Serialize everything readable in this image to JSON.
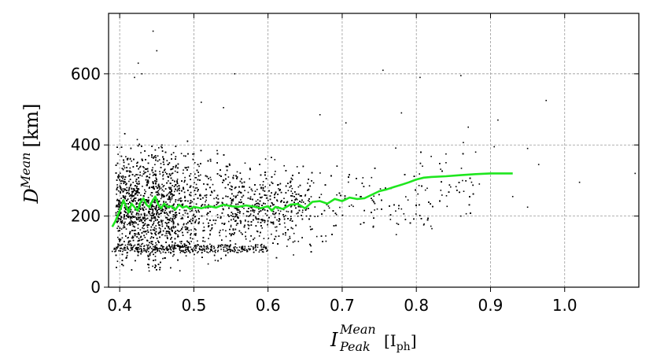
{
  "chart_data": {
    "type": "scatter",
    "xlabel": {
      "symbol": "I",
      "superscript": "Mean",
      "subscript": "Peak",
      "unit_open": "[I",
      "unit_sub": "ph",
      "unit_close": "]"
    },
    "ylabel": {
      "symbol": "D",
      "superscript": "Mean",
      "unit": "[km]"
    },
    "xlim": [
      0.385,
      1.1
    ],
    "ylim": [
      0,
      770
    ],
    "x_ticks": [
      {
        "value": 0.4,
        "label": "0.4"
      },
      {
        "value": 0.5,
        "label": "0.5"
      },
      {
        "value": 0.6,
        "label": "0.6"
      },
      {
        "value": 0.7,
        "label": "0.7"
      },
      {
        "value": 0.8,
        "label": "0.8"
      },
      {
        "value": 0.9,
        "label": "0.9"
      },
      {
        "value": 1.0,
        "label": "1.0"
      }
    ],
    "y_ticks": [
      {
        "value": 0,
        "label": "0"
      },
      {
        "value": 200,
        "label": "200"
      },
      {
        "value": 400,
        "label": "400"
      },
      {
        "value": 600,
        "label": "600"
      }
    ],
    "grid": true,
    "scatter": {
      "color": "#000000",
      "description": "dense cloud of individual points, most concentrated at x 0.40-0.55, y 100-350, thinning toward higher x",
      "outliers": [
        [
          0.425,
          630
        ],
        [
          0.43,
          600
        ],
        [
          0.445,
          720
        ],
        [
          0.45,
          665
        ],
        [
          0.42,
          590
        ],
        [
          0.555,
          600
        ],
        [
          0.755,
          610
        ],
        [
          0.805,
          590
        ],
        [
          0.86,
          595
        ],
        [
          0.975,
          525
        ],
        [
          0.51,
          520
        ],
        [
          0.54,
          505
        ],
        [
          0.67,
          485
        ],
        [
          0.78,
          490
        ],
        [
          0.87,
          450
        ],
        [
          0.91,
          470
        ],
        [
          0.705,
          462
        ],
        [
          0.965,
          345
        ],
        [
          1.02,
          295
        ],
        [
          1.095,
          320
        ],
        [
          0.88,
          380
        ],
        [
          0.95,
          390
        ],
        [
          0.93,
          255
        ],
        [
          0.86,
          200
        ],
        [
          0.95,
          225
        ],
        [
          0.81,
          175
        ],
        [
          0.78,
          220
        ],
        [
          0.885,
          290
        ],
        [
          0.84,
          350
        ],
        [
          0.905,
          395
        ]
      ]
    },
    "series": [
      {
        "name": "",
        "color": "#1ee61e",
        "x": [
          0.39,
          0.394,
          0.398,
          0.402,
          0.405,
          0.408,
          0.412,
          0.416,
          0.42,
          0.424,
          0.428,
          0.432,
          0.436,
          0.44,
          0.444,
          0.448,
          0.452,
          0.456,
          0.46,
          0.465,
          0.47,
          0.475,
          0.48,
          0.485,
          0.49,
          0.495,
          0.5,
          0.51,
          0.52,
          0.53,
          0.54,
          0.55,
          0.56,
          0.57,
          0.58,
          0.59,
          0.6,
          0.605,
          0.61,
          0.62,
          0.63,
          0.64,
          0.65,
          0.66,
          0.67,
          0.68,
          0.69,
          0.7,
          0.71,
          0.72,
          0.73,
          0.74,
          0.75,
          0.76,
          0.77,
          0.78,
          0.79,
          0.8,
          0.81,
          0.82,
          0.84,
          0.86,
          0.88,
          0.9,
          0.93
        ],
        "y": [
          170,
          185,
          205,
          225,
          245,
          230,
          210,
          235,
          225,
          215,
          238,
          250,
          232,
          225,
          242,
          255,
          232,
          222,
          235,
          225,
          228,
          218,
          232,
          224,
          228,
          220,
          226,
          222,
          228,
          224,
          232,
          228,
          226,
          230,
          227,
          222,
          228,
          215,
          226,
          220,
          232,
          234,
          222,
          240,
          242,
          235,
          248,
          242,
          252,
          248,
          250,
          260,
          270,
          275,
          282,
          288,
          295,
          303,
          308,
          310,
          312,
          315,
          318,
          320,
          320
        ]
      }
    ]
  }
}
